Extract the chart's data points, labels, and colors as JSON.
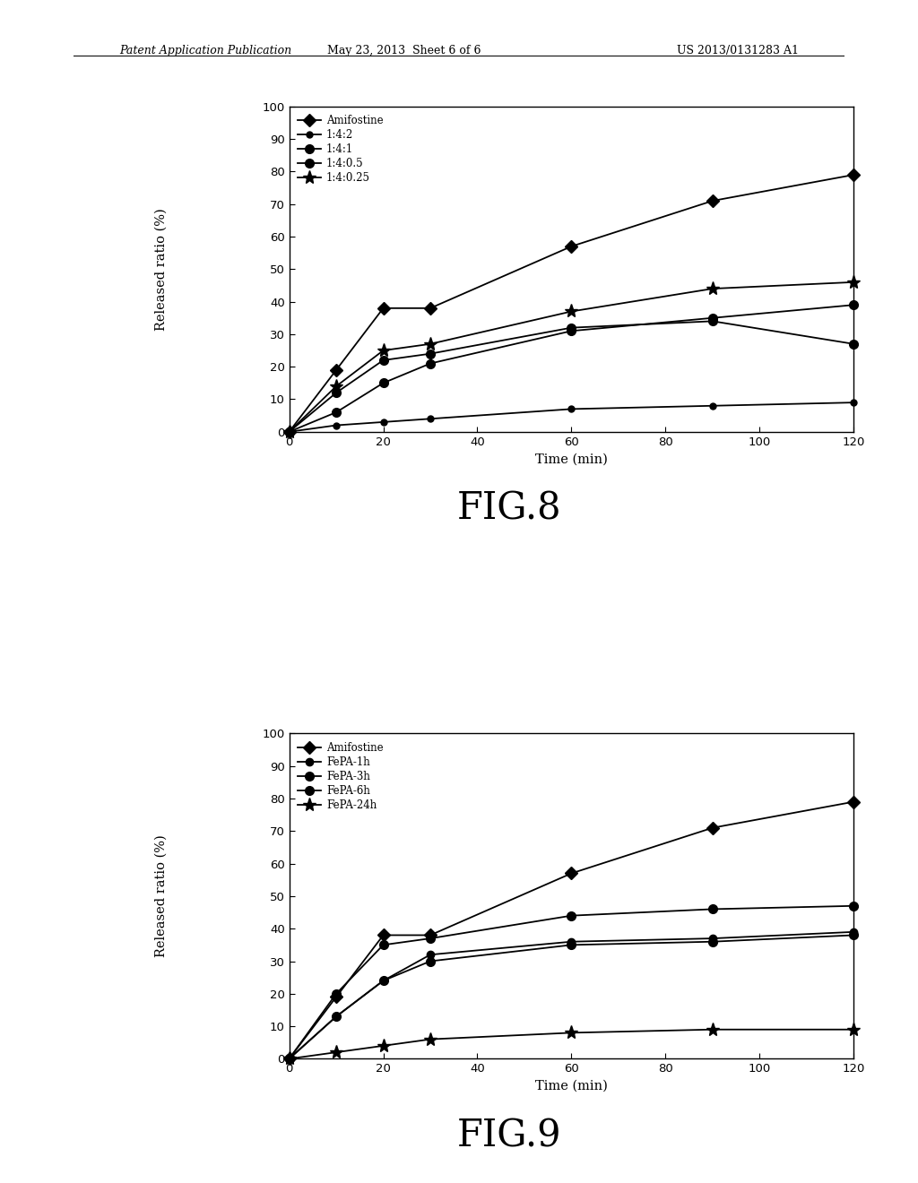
{
  "fig8": {
    "xlabel": "Time (min)",
    "ylabel": "Released ratio (%)",
    "xlim": [
      0,
      120
    ],
    "ylim": [
      0,
      100
    ],
    "xticks": [
      0,
      20,
      40,
      60,
      80,
      100,
      120
    ],
    "yticks": [
      0,
      10,
      20,
      30,
      40,
      50,
      60,
      70,
      80,
      90,
      100
    ],
    "series": [
      {
        "label": "Amifostine",
        "marker": "D",
        "markersize": 7,
        "x": [
          0,
          10,
          20,
          30,
          60,
          90,
          120
        ],
        "y": [
          0,
          19,
          38,
          38,
          57,
          71,
          79
        ]
      },
      {
        "label": "1:4:2",
        "marker": "o",
        "markersize": 5,
        "x": [
          0,
          10,
          20,
          30,
          60,
          90,
          120
        ],
        "y": [
          0,
          2,
          3,
          4,
          7,
          8,
          9
        ]
      },
      {
        "label": "1:4:1",
        "marker": "o",
        "markersize": 7,
        "x": [
          0,
          10,
          20,
          30,
          60,
          90,
          120
        ],
        "y": [
          0,
          6,
          15,
          21,
          31,
          35,
          39
        ]
      },
      {
        "label": "1:4:0.5",
        "marker": "o",
        "markersize": 7,
        "x": [
          0,
          10,
          20,
          30,
          60,
          90,
          120
        ],
        "y": [
          0,
          12,
          22,
          24,
          32,
          34,
          27
        ]
      },
      {
        "label": "1:4:0.25",
        "marker": "*",
        "markersize": 11,
        "x": [
          0,
          10,
          20,
          30,
          60,
          90,
          120
        ],
        "y": [
          0,
          14,
          25,
          27,
          37,
          44,
          46
        ]
      }
    ]
  },
  "fig9": {
    "xlabel": "Time (min)",
    "ylabel": "Released ratio (%)",
    "xlim": [
      0,
      120
    ],
    "ylim": [
      0,
      100
    ],
    "xticks": [
      0,
      20,
      40,
      60,
      80,
      100,
      120
    ],
    "yticks": [
      0,
      10,
      20,
      30,
      40,
      50,
      60,
      70,
      80,
      90,
      100
    ],
    "series": [
      {
        "label": "Amifostine",
        "marker": "D",
        "markersize": 7,
        "x": [
          0,
          10,
          20,
          30,
          60,
          90,
          120
        ],
        "y": [
          0,
          19,
          38,
          38,
          57,
          71,
          79
        ]
      },
      {
        "label": "FePA-1h",
        "marker": "o",
        "markersize": 6,
        "x": [
          0,
          10,
          20,
          30,
          60,
          90,
          120
        ],
        "y": [
          0,
          13,
          24,
          32,
          36,
          37,
          39
        ]
      },
      {
        "label": "FePA-3h",
        "marker": "o",
        "markersize": 7,
        "x": [
          0,
          10,
          20,
          30,
          60,
          90,
          120
        ],
        "y": [
          0,
          20,
          35,
          37,
          44,
          46,
          47
        ]
      },
      {
        "label": "FePA-6h",
        "marker": "o",
        "markersize": 7,
        "x": [
          0,
          10,
          20,
          30,
          60,
          90,
          120
        ],
        "y": [
          0,
          13,
          24,
          30,
          35,
          36,
          38
        ]
      },
      {
        "label": "FePA-24h",
        "marker": "*",
        "markersize": 11,
        "x": [
          0,
          10,
          20,
          30,
          60,
          90,
          120
        ],
        "y": [
          0,
          2,
          4,
          6,
          8,
          9,
          9
        ]
      }
    ]
  },
  "header_left": "Patent Application Publication",
  "header_mid": "May 23, 2013  Sheet 6 of 6",
  "header_right": "US 2013/0131283 A1",
  "fig8_label": "FIG.8",
  "fig9_label": "FIG.9",
  "background_color": "#ffffff",
  "line_color": "#000000",
  "linewidth": 1.3,
  "legend_fontsize": 8.5,
  "axis_label_fontsize": 10.5,
  "tick_fontsize": 9.5,
  "fig_label_fontsize": 30,
  "header_fontsize": 9
}
